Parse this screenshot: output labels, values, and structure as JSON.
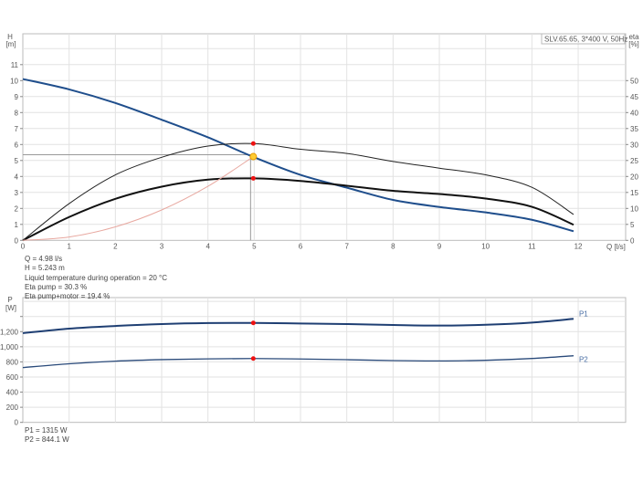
{
  "chart_data": [
    {
      "type": "line",
      "title_box": "SLV.65.65, 3*400 V, 50Hz",
      "ylabel": "H",
      "yunit": "[m]",
      "y2label": "eta",
      "y2unit": "[%]",
      "xlabel": "Q [l/s]",
      "xlim": [
        0,
        13
      ],
      "ylim": [
        0,
        12.9
      ],
      "y2lim": [
        0,
        64.5
      ],
      "xticks": [
        "0",
        "1",
        "2",
        "3",
        "4",
        "5",
        "6",
        "7",
        "8",
        "9",
        "10",
        "11",
        "12"
      ],
      "yticks": [
        "0",
        "1",
        "2",
        "3",
        "4",
        "5",
        "6",
        "7",
        "8",
        "9",
        "10",
        "11"
      ],
      "y2ticks": [
        "0",
        "5",
        "10",
        "15",
        "20",
        "25",
        "30",
        "35",
        "40",
        "45",
        "50"
      ],
      "grid": true,
      "series": [
        {
          "id": "head",
          "axis": "left",
          "color": "#1f4e8c",
          "width": 2,
          "x": [
            0,
            1,
            2,
            3,
            4,
            5,
            6,
            7,
            8,
            9,
            10,
            11,
            11.9
          ],
          "y": [
            10.1,
            9.45,
            8.6,
            7.55,
            6.45,
            5.2,
            4.1,
            3.3,
            2.53,
            2.09,
            1.75,
            1.29,
            0.57
          ]
        },
        {
          "id": "eta-pump",
          "axis": "right",
          "color": "#222222",
          "width": 1,
          "x": [
            0,
            1,
            2,
            3,
            4,
            5,
            6,
            7,
            8,
            9,
            10,
            11,
            11.9
          ],
          "y": [
            0,
            11.5,
            20.5,
            26,
            29.5,
            30.3,
            28.5,
            27.2,
            24.7,
            22.6,
            20.5,
            16.6,
            8.1
          ]
        },
        {
          "id": "eta-pump-motor",
          "axis": "right",
          "color": "#111111",
          "width": 2,
          "x": [
            0,
            1,
            2,
            3,
            4,
            5,
            6,
            7,
            8,
            9,
            10,
            11,
            11.9
          ],
          "y": [
            0,
            7.3,
            13,
            16.8,
            19,
            19.4,
            18.6,
            17.1,
            15.5,
            14.5,
            13.1,
            10.5,
            4.9
          ]
        },
        {
          "id": "system-curve",
          "axis": "left",
          "color": "#e8a8a0",
          "width": 1,
          "x": [
            0,
            1,
            2,
            3,
            4,
            4.98
          ],
          "y": [
            0,
            0.211,
            0.846,
            1.903,
            3.383,
            5.243
          ]
        }
      ],
      "duty_point": {
        "q": 4.98,
        "h": 5.243,
        "eta_pump": 30.3,
        "eta_total": 19.4
      }
    },
    {
      "type": "line",
      "ylabel": "P",
      "yunit": "[W]",
      "xlim": [
        0,
        13
      ],
      "ylim": [
        0,
        1640
      ],
      "yticks": [
        "0",
        "200",
        "400",
        "600",
        "800",
        "1,000",
        "1,200",
        ""
      ],
      "grid": true,
      "series": [
        {
          "name": "P1",
          "color": "#1f3f73",
          "width": 2,
          "x": [
            0,
            1,
            2,
            3,
            4,
            5,
            6,
            7,
            8,
            9,
            10,
            11,
            11.9
          ],
          "y": [
            1180,
            1240,
            1275,
            1300,
            1313,
            1315,
            1308,
            1300,
            1288,
            1280,
            1291,
            1320,
            1369
          ]
        },
        {
          "name": "P2",
          "color": "#2a4a7a",
          "width": 1.3,
          "x": [
            0,
            1,
            2,
            3,
            4,
            5,
            6,
            7,
            8,
            9,
            10,
            11,
            11.9
          ],
          "y": [
            725,
            775,
            810,
            830,
            840,
            844,
            838,
            829,
            817,
            813,
            821,
            845,
            881
          ]
        }
      ],
      "duty_point": {
        "q": 4.98,
        "p1": 1315,
        "p2": 844.1
      }
    }
  ],
  "info": {
    "q": "Q = 4.98 l/s",
    "h": "H = 5.243 m",
    "temp": "Liquid temperature during operation = 20 °C",
    "eta_pump": "Eta pump = 30.3 %",
    "eta_total": "Eta pump+motor = 19.4 %",
    "p1": "P1 = 1315 W",
    "p2": "P2 = 844.1 W"
  },
  "colors": {
    "marker": "#ee1111",
    "duty": "#ffcc33",
    "grid": "#e2e2e2"
  }
}
